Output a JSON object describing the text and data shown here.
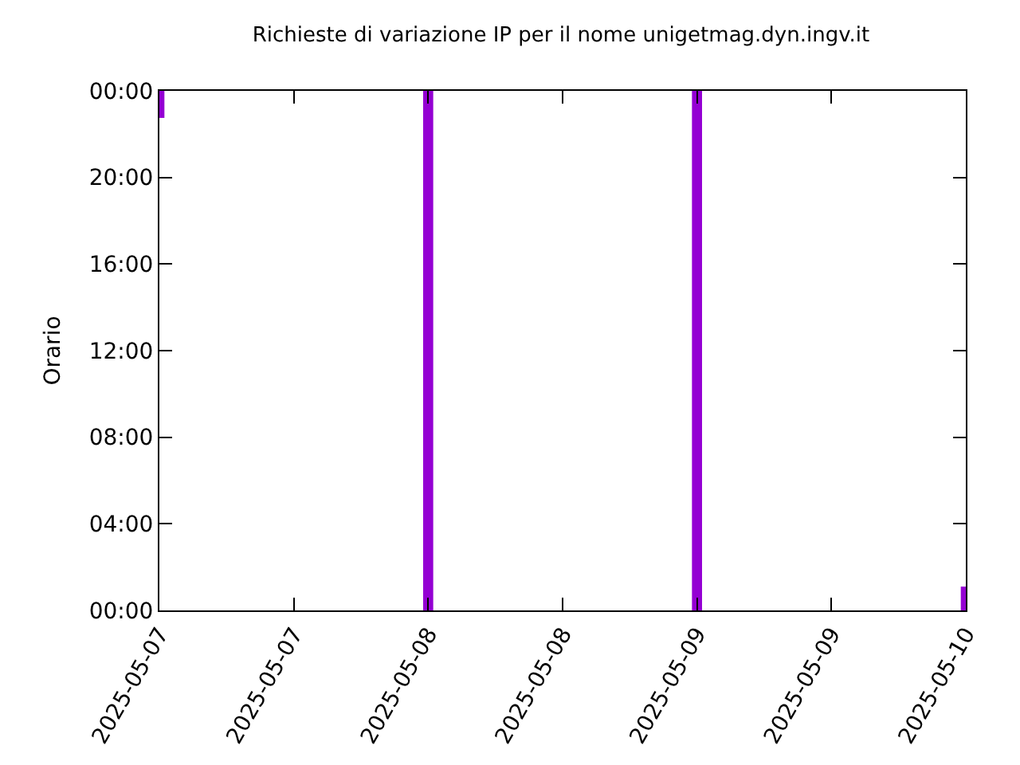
{
  "chart_data": {
    "type": "bar",
    "title": "Richieste di variazione IP per il nome unigetmag.dyn.ingv.it",
    "ylabel": "Orario",
    "x": [
      "2025-05-07",
      "2025-05-08",
      "2025-05-09",
      "2025-05-10"
    ],
    "base": [
      22.75,
      0,
      0,
      0
    ],
    "values": [
      1.25,
      24,
      24,
      1.1
    ],
    "color": "#9400d3",
    "xlim": [
      "2025-05-07",
      "2025-05-10"
    ],
    "xticks": [
      {
        "value": "2025-05-07",
        "label": "2025-05-07"
      },
      {
        "value": "2025-05-07T12:00",
        "label": "2025-05-07"
      },
      {
        "value": "2025-05-08",
        "label": "2025-05-08"
      },
      {
        "value": "2025-05-08T12:00",
        "label": "2025-05-08"
      },
      {
        "value": "2025-05-09",
        "label": "2025-05-09"
      },
      {
        "value": "2025-05-09T12:00",
        "label": "2025-05-09"
      },
      {
        "value": "2025-05-10",
        "label": "2025-05-10"
      }
    ],
    "ylim": [
      0,
      24
    ],
    "yticks": [
      {
        "value": 0,
        "label": "00:00"
      },
      {
        "value": 4,
        "label": "04:00"
      },
      {
        "value": 8,
        "label": "08:00"
      },
      {
        "value": 12,
        "label": "12:00"
      },
      {
        "value": 16,
        "label": "16:00"
      },
      {
        "value": 20,
        "label": "20:00"
      },
      {
        "value": 24,
        "label": "00:00"
      }
    ],
    "grid": false
  }
}
